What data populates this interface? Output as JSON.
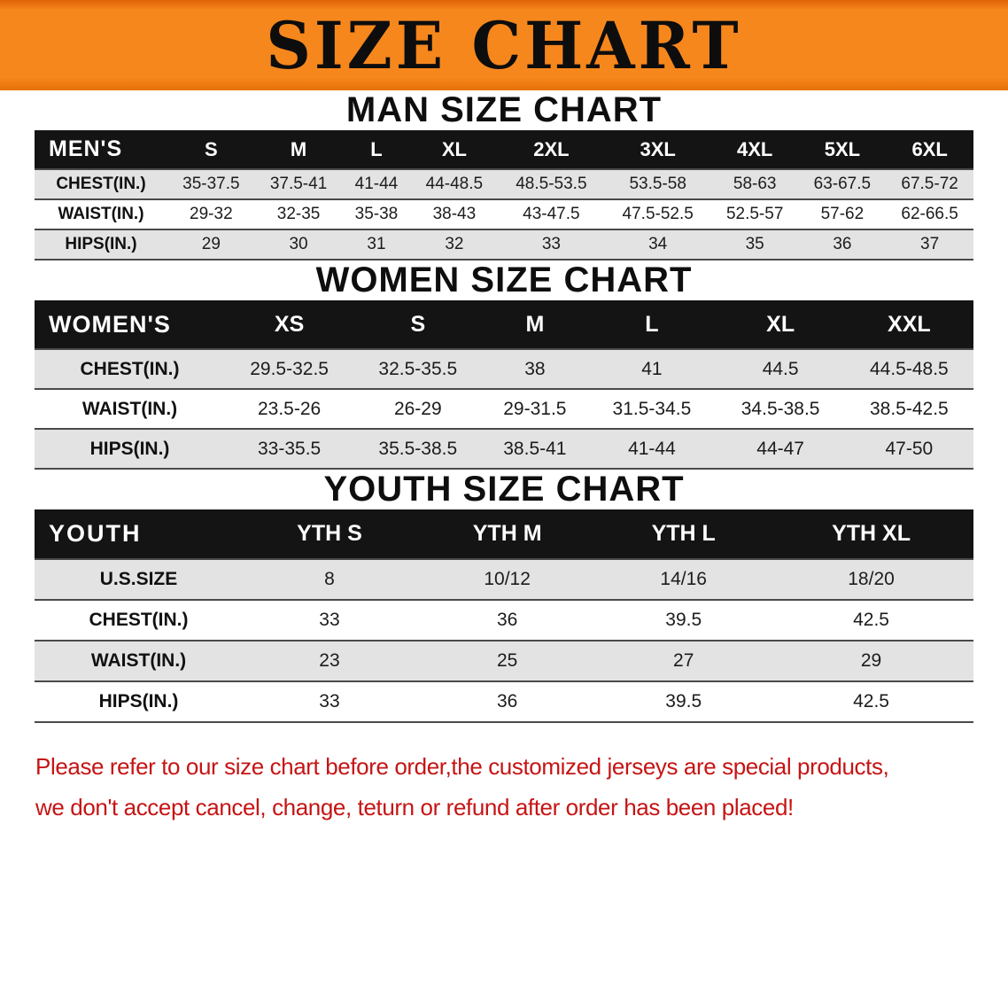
{
  "banner": {
    "title": "SIZE CHART"
  },
  "man_section": {
    "heading": "MAN SIZE CHART",
    "table": {
      "header": [
        "MEN'S",
        "S",
        "M",
        "L",
        "XL",
        "2XL",
        "3XL",
        "4XL",
        "5XL",
        "6XL"
      ],
      "rows": [
        [
          "CHEST(IN.)",
          "35-37.5",
          "37.5-41",
          "41-44",
          "44-48.5",
          "48.5-53.5",
          "53.5-58",
          "58-63",
          "63-67.5",
          "67.5-72"
        ],
        [
          "WAIST(IN.)",
          "29-32",
          "32-35",
          "35-38",
          "38-43",
          "43-47.5",
          "47.5-52.5",
          "52.5-57",
          "57-62",
          "62-66.5"
        ],
        [
          "HIPS(IN.)",
          "29",
          "30",
          "31",
          "32",
          "33",
          "34",
          "35",
          "36",
          "37"
        ]
      ]
    }
  },
  "women_section": {
    "heading": "WOMEN SIZE CHART",
    "table": {
      "header": [
        "WOMEN'S",
        "XS",
        "S",
        "M",
        "L",
        "XL",
        "XXL"
      ],
      "rows": [
        [
          "CHEST(IN.)",
          "29.5-32.5",
          "32.5-35.5",
          "38",
          "41",
          "44.5",
          "44.5-48.5"
        ],
        [
          "WAIST(IN.)",
          "23.5-26",
          "26-29",
          "29-31.5",
          "31.5-34.5",
          "34.5-38.5",
          "38.5-42.5"
        ],
        [
          "HIPS(IN.)",
          "33-35.5",
          "35.5-38.5",
          "38.5-41",
          "41-44",
          "44-47",
          "47-50"
        ]
      ]
    }
  },
  "youth_section": {
    "heading": "YOUTH SIZE CHART",
    "table": {
      "header": [
        "YOUTH",
        "YTH S",
        "YTH M",
        "YTH L",
        "YTH XL"
      ],
      "rows": [
        [
          "U.S.SIZE",
          "8",
          "10/12",
          "14/16",
          "18/20"
        ],
        [
          "CHEST(IN.)",
          "33",
          "36",
          "39.5",
          "42.5"
        ],
        [
          "WAIST(IN.)",
          "23",
          "25",
          "27",
          "29"
        ],
        [
          "HIPS(IN.)",
          "33",
          "36",
          "39.5",
          "42.5"
        ]
      ]
    }
  },
  "footer": {
    "line1": "Please refer to our size chart before order,the customized jerseys are special products,",
    "line2": "we don't accept cancel, change, teturn or refund after order has been placed!"
  },
  "colors": {
    "banner_bg": "#f6871d",
    "header_bar_bg": "#141414",
    "header_bar_text": "#ffffff",
    "stripe_gray": "#e3e3e3",
    "footer_red": "#c61414"
  }
}
